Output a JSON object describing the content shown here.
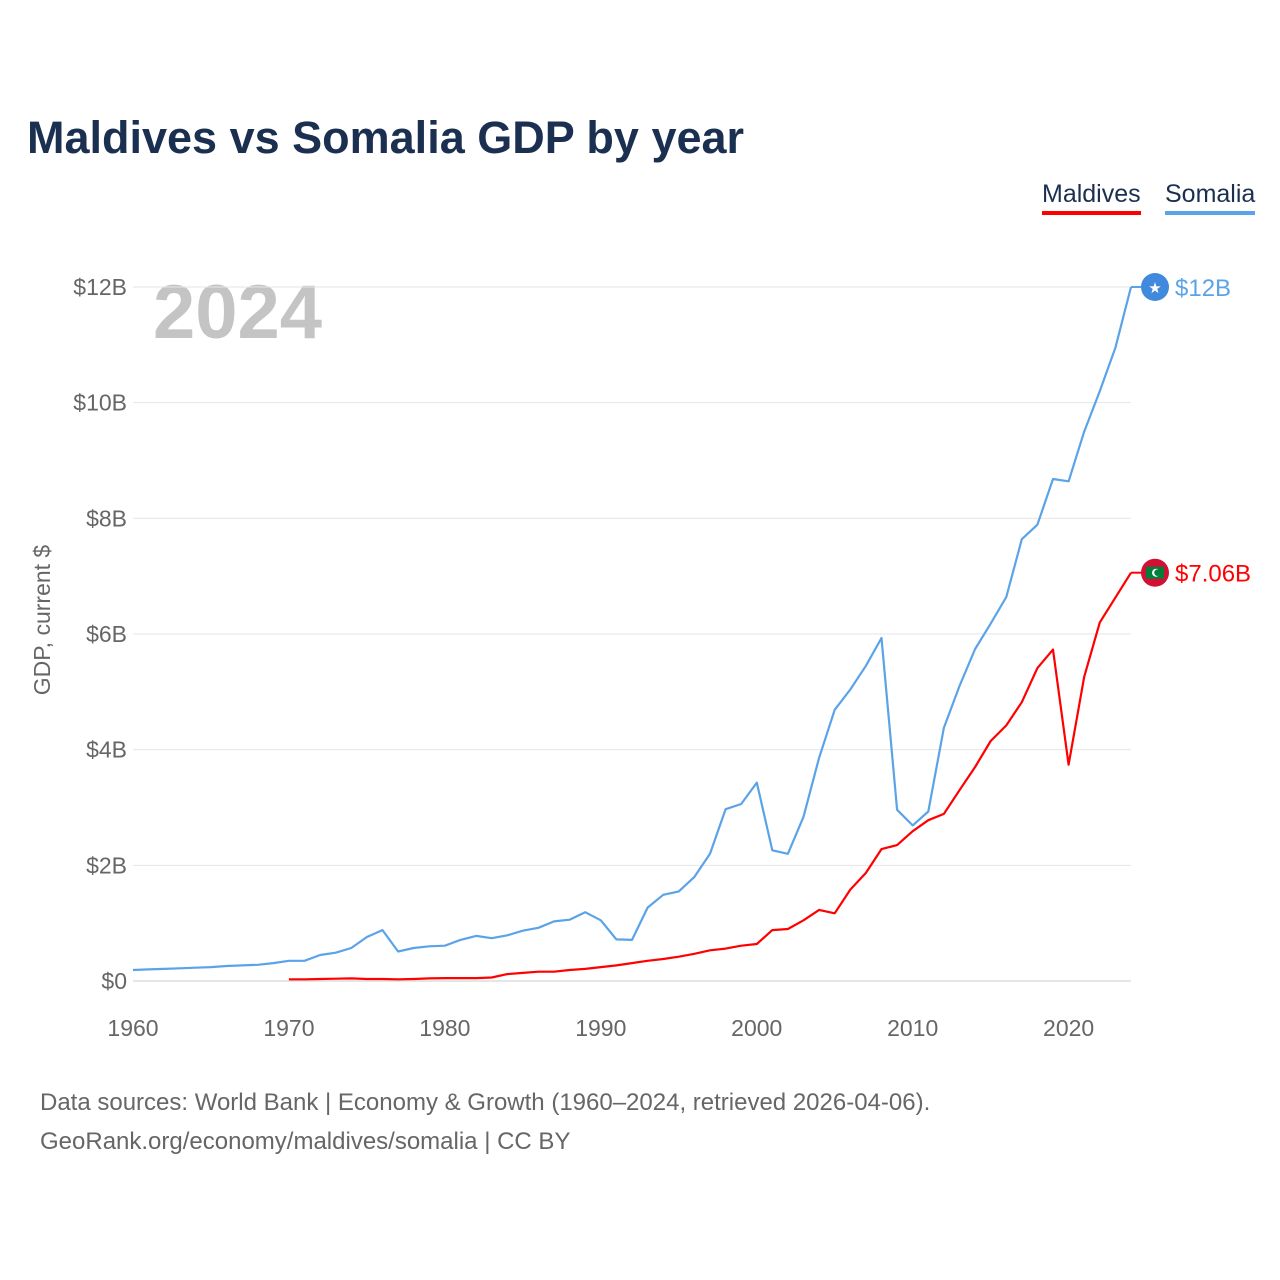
{
  "title": "Maldives vs Somalia GDP by year",
  "legend": [
    {
      "name": "Maldives",
      "color": "#ff0000"
    },
    {
      "name": "Somalia",
      "color": "#5ba3e8"
    }
  ],
  "source_line1": "Data sources: World Bank | Economy & Growth (1960–2024, retrieved 2026-04-06).",
  "source_line2": "GeoRank.org/economy/maldives/somalia | CC BY",
  "chart_data": {
    "type": "line",
    "title": "Maldives vs Somalia GDP by year",
    "xlabel": "",
    "ylabel": "GDP, current $",
    "year_label": "2024",
    "xlim": [
      1960,
      2024
    ],
    "ylim": [
      0,
      12
    ],
    "x_ticks": [
      "1960",
      "1970",
      "1980",
      "1990",
      "2000",
      "2010",
      "2020"
    ],
    "y_ticks": [
      {
        "v": 0,
        "label": "$0"
      },
      {
        "v": 2,
        "label": "$2B"
      },
      {
        "v": 4,
        "label": "$4B"
      },
      {
        "v": 6,
        "label": "$6B"
      },
      {
        "v": 8,
        "label": "$8B"
      },
      {
        "v": 10,
        "label": "$10B"
      },
      {
        "v": 12,
        "label": "$12B"
      }
    ],
    "grid": true,
    "series": [
      {
        "name": "Somalia",
        "color": "#5ba3e8",
        "end_label": "$12B",
        "start": 1960,
        "values": [
          0.19,
          0.2,
          0.21,
          0.22,
          0.23,
          0.24,
          0.26,
          0.27,
          0.28,
          0.31,
          0.35,
          0.35,
          0.45,
          0.49,
          0.57,
          0.76,
          0.88,
          0.51,
          0.57,
          0.6,
          0.61,
          0.71,
          0.78,
          0.74,
          0.79,
          0.87,
          0.92,
          1.03,
          1.06,
          1.19,
          1.05,
          0.72,
          0.71,
          1.27,
          1.49,
          1.55,
          1.8,
          2.2,
          2.97,
          3.06,
          3.43,
          2.26,
          2.2,
          2.84,
          3.86,
          4.69,
          5.04,
          5.45,
          5.93,
          2.96,
          2.69,
          2.93,
          4.38,
          5.1,
          5.74,
          6.18,
          6.64,
          7.64,
          7.89,
          8.68,
          8.64,
          9.5,
          10.2,
          10.95,
          12.0
        ]
      },
      {
        "name": "Maldives",
        "color": "#ff0000",
        "end_label": "$7.06B",
        "start": 1970,
        "values": [
          0.03,
          0.03,
          0.035,
          0.04,
          0.045,
          0.035,
          0.035,
          0.03,
          0.035,
          0.045,
          0.05,
          0.05,
          0.05,
          0.06,
          0.12,
          0.14,
          0.16,
          0.16,
          0.19,
          0.21,
          0.24,
          0.27,
          0.31,
          0.35,
          0.38,
          0.42,
          0.47,
          0.53,
          0.56,
          0.61,
          0.64,
          0.88,
          0.9,
          1.05,
          1.23,
          1.17,
          1.58,
          1.87,
          2.28,
          2.35,
          2.59,
          2.78,
          2.89,
          3.3,
          3.7,
          4.15,
          4.42,
          4.82,
          5.41,
          5.73,
          3.74,
          5.26,
          6.2,
          6.63,
          7.06
        ]
      }
    ]
  }
}
